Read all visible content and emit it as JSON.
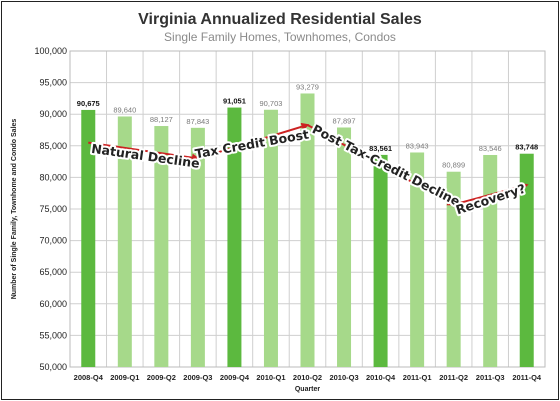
{
  "chart_data": {
    "type": "bar",
    "title": "Virginia Annualized Residential Sales",
    "subtitle": "Single Family Homes, Townhomes, Condos",
    "xlabel": "Quarter",
    "ylabel": "Number of Single Family, Townhome and Condo Sales",
    "ylim": [
      50000,
      100000
    ],
    "ytick_step": 5000,
    "ytick_labels": [
      "50,000",
      "55,000",
      "60,000",
      "65,000",
      "70,000",
      "75,000",
      "80,000",
      "85,000",
      "90,000",
      "95,000",
      "100,000"
    ],
    "grid": true,
    "categories": [
      "2008-Q4",
      "2009-Q1",
      "2009-Q2",
      "2009-Q3",
      "2009-Q4",
      "2010-Q1",
      "2010-Q2",
      "2010-Q3",
      "2010-Q4",
      "2011-Q1",
      "2011-Q2",
      "2011-Q3",
      "2011-Q4"
    ],
    "values": [
      90675,
      89640,
      88127,
      87843,
      91051,
      90703,
      93279,
      87897,
      83561,
      83943,
      80899,
      83546,
      83748
    ],
    "data_labels": [
      "90,675",
      "89,640",
      "88,127",
      "87,843",
      "91,051",
      "90,703",
      "93,279",
      "87,897",
      "83,561",
      "83,943",
      "80,899",
      "83,546",
      "83,748"
    ],
    "highlighted": [
      true,
      false,
      false,
      false,
      true,
      false,
      false,
      false,
      true,
      false,
      false,
      false,
      true
    ],
    "colors": {
      "bar_dark": "#5cb93f",
      "bar_light": "#a6d98a",
      "arrow": "#cc2222",
      "grid": "#cfcfcf",
      "label_dark": "#111111",
      "label_light": "#7a7a7a"
    },
    "annotations": [
      {
        "text": "Natural Decline",
        "rotate": 8
      },
      {
        "text": "Tax Credit Boost",
        "rotate": -10
      },
      {
        "text": "Post Tax-Credit Decline",
        "rotate": 27
      },
      {
        "text": "Recovery?",
        "rotate": -18
      }
    ],
    "trend_arrows": [
      {
        "from": [
          0,
          85500
        ],
        "to": [
          3,
          83000
        ]
      },
      {
        "from": [
          3,
          83000
        ],
        "to": [
          6,
          88300
        ]
      },
      {
        "from": [
          6,
          88300
        ],
        "to": [
          10,
          75700
        ]
      },
      {
        "from": [
          10,
          75700
        ],
        "to": [
          12,
          78800
        ]
      }
    ]
  }
}
